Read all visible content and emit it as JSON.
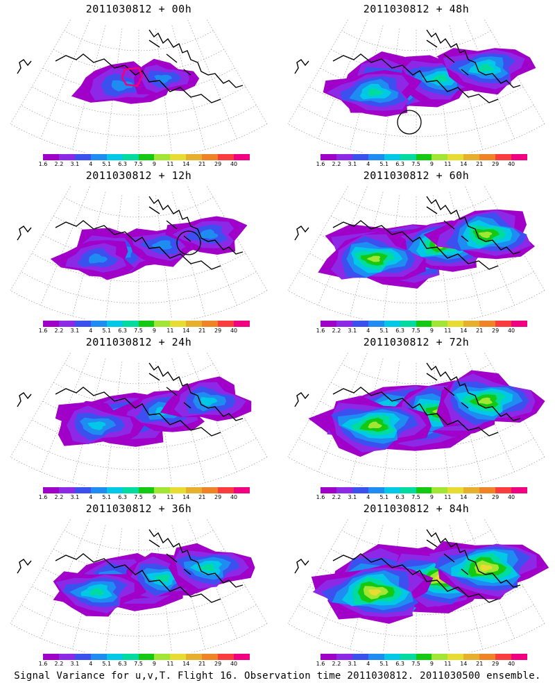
{
  "panels": [
    {
      "title": "2011030812 + 00h",
      "intensity": 0.2,
      "spread": 0.25,
      "box": true,
      "circle": null
    },
    {
      "title": "2011030812 + 48h",
      "intensity": 0.55,
      "spread": 0.65,
      "box": false,
      "circle": "south"
    },
    {
      "title": "2011030812 + 12h",
      "intensity": 0.3,
      "spread": 0.4,
      "box": false,
      "circle": "northeast"
    },
    {
      "title": "2011030812 + 60h",
      "intensity": 0.7,
      "spread": 0.8,
      "box": false,
      "circle": null
    },
    {
      "title": "2011030812 + 24h",
      "intensity": 0.4,
      "spread": 0.55,
      "box": false,
      "circle": null
    },
    {
      "title": "2011030812 + 72h",
      "intensity": 0.8,
      "spread": 0.9,
      "box": false,
      "circle": null
    },
    {
      "title": "2011030812 + 36h",
      "intensity": 0.45,
      "spread": 0.6,
      "box": false,
      "circle": null
    },
    {
      "title": "2011030812 + 84h",
      "intensity": 0.9,
      "spread": 1.0,
      "box": false,
      "circle": null
    }
  ],
  "colorbar": {
    "labels": [
      "1.6",
      "2.2",
      "3.1",
      "4",
      "5.1",
      "6.3",
      "7.5",
      "9",
      "11",
      "14",
      "21",
      "29",
      "40"
    ],
    "colors": [
      "#a000c8",
      "#8c28e6",
      "#3c50f0",
      "#1e8cf0",
      "#00c8e6",
      "#00dca0",
      "#14c814",
      "#a0e632",
      "#e6dc32",
      "#e6af2d",
      "#f08228",
      "#fa3c3c",
      "#f00082"
    ]
  },
  "caption": "Signal Variance for u,v,T. Flight 16. Observation time 2011030812. 2011030500 ensemble."
}
